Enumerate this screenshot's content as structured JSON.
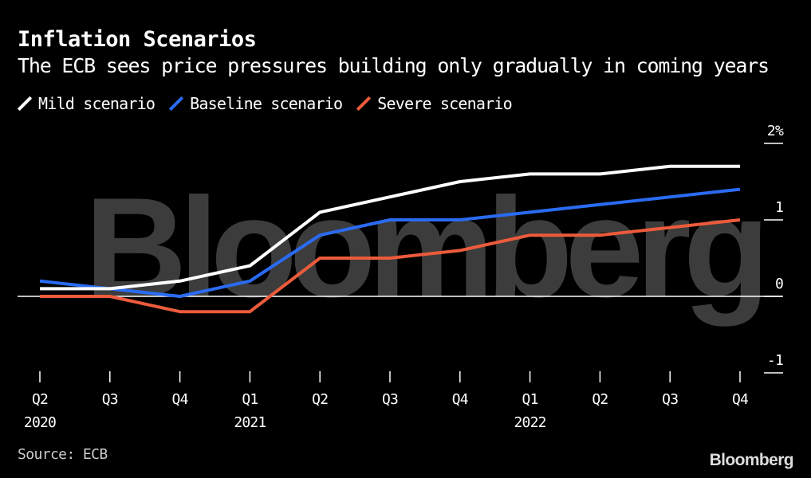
{
  "title": "Inflation Scenarios",
  "subtitle": "The ECB sees price pressures building only gradually in coming years",
  "source": "Source: ECB",
  "brand": "Bloomberg",
  "watermark": "Bloomberg",
  "chart_data": {
    "type": "line",
    "categories": [
      "Q2",
      "Q3",
      "Q4",
      "Q1",
      "Q2",
      "Q3",
      "Q4",
      "Q1",
      "Q2",
      "Q3",
      "Q4"
    ],
    "year_labels": [
      {
        "index": 0,
        "label": "2020"
      },
      {
        "index": 3,
        "label": "2021"
      },
      {
        "index": 7,
        "label": "2022"
      }
    ],
    "series": [
      {
        "name": "Mild scenario",
        "color": "#ffffff",
        "values": [
          0.1,
          0.1,
          0.2,
          0.4,
          1.1,
          1.3,
          1.5,
          1.6,
          1.6,
          1.7,
          1.7
        ]
      },
      {
        "name": "Baseline scenario",
        "color": "#2a6bf2",
        "values": [
          0.2,
          0.1,
          0.0,
          0.2,
          0.8,
          1.0,
          1.0,
          1.1,
          1.2,
          1.3,
          1.4
        ]
      },
      {
        "name": "Severe scenario",
        "color": "#ec5b3c",
        "values": [
          0.0,
          0.0,
          -0.2,
          -0.2,
          0.5,
          0.5,
          0.6,
          0.8,
          0.8,
          0.9,
          1.0
        ]
      }
    ],
    "y_ticks": [
      {
        "value": 2,
        "label": "2%"
      },
      {
        "value": 1,
        "label": "1"
      },
      {
        "value": 0,
        "label": "0"
      },
      {
        "value": -1,
        "label": "-1"
      }
    ],
    "ylim": [
      -1,
      2
    ],
    "title": "Inflation Scenarios",
    "xlabel": "",
    "ylabel": ""
  }
}
